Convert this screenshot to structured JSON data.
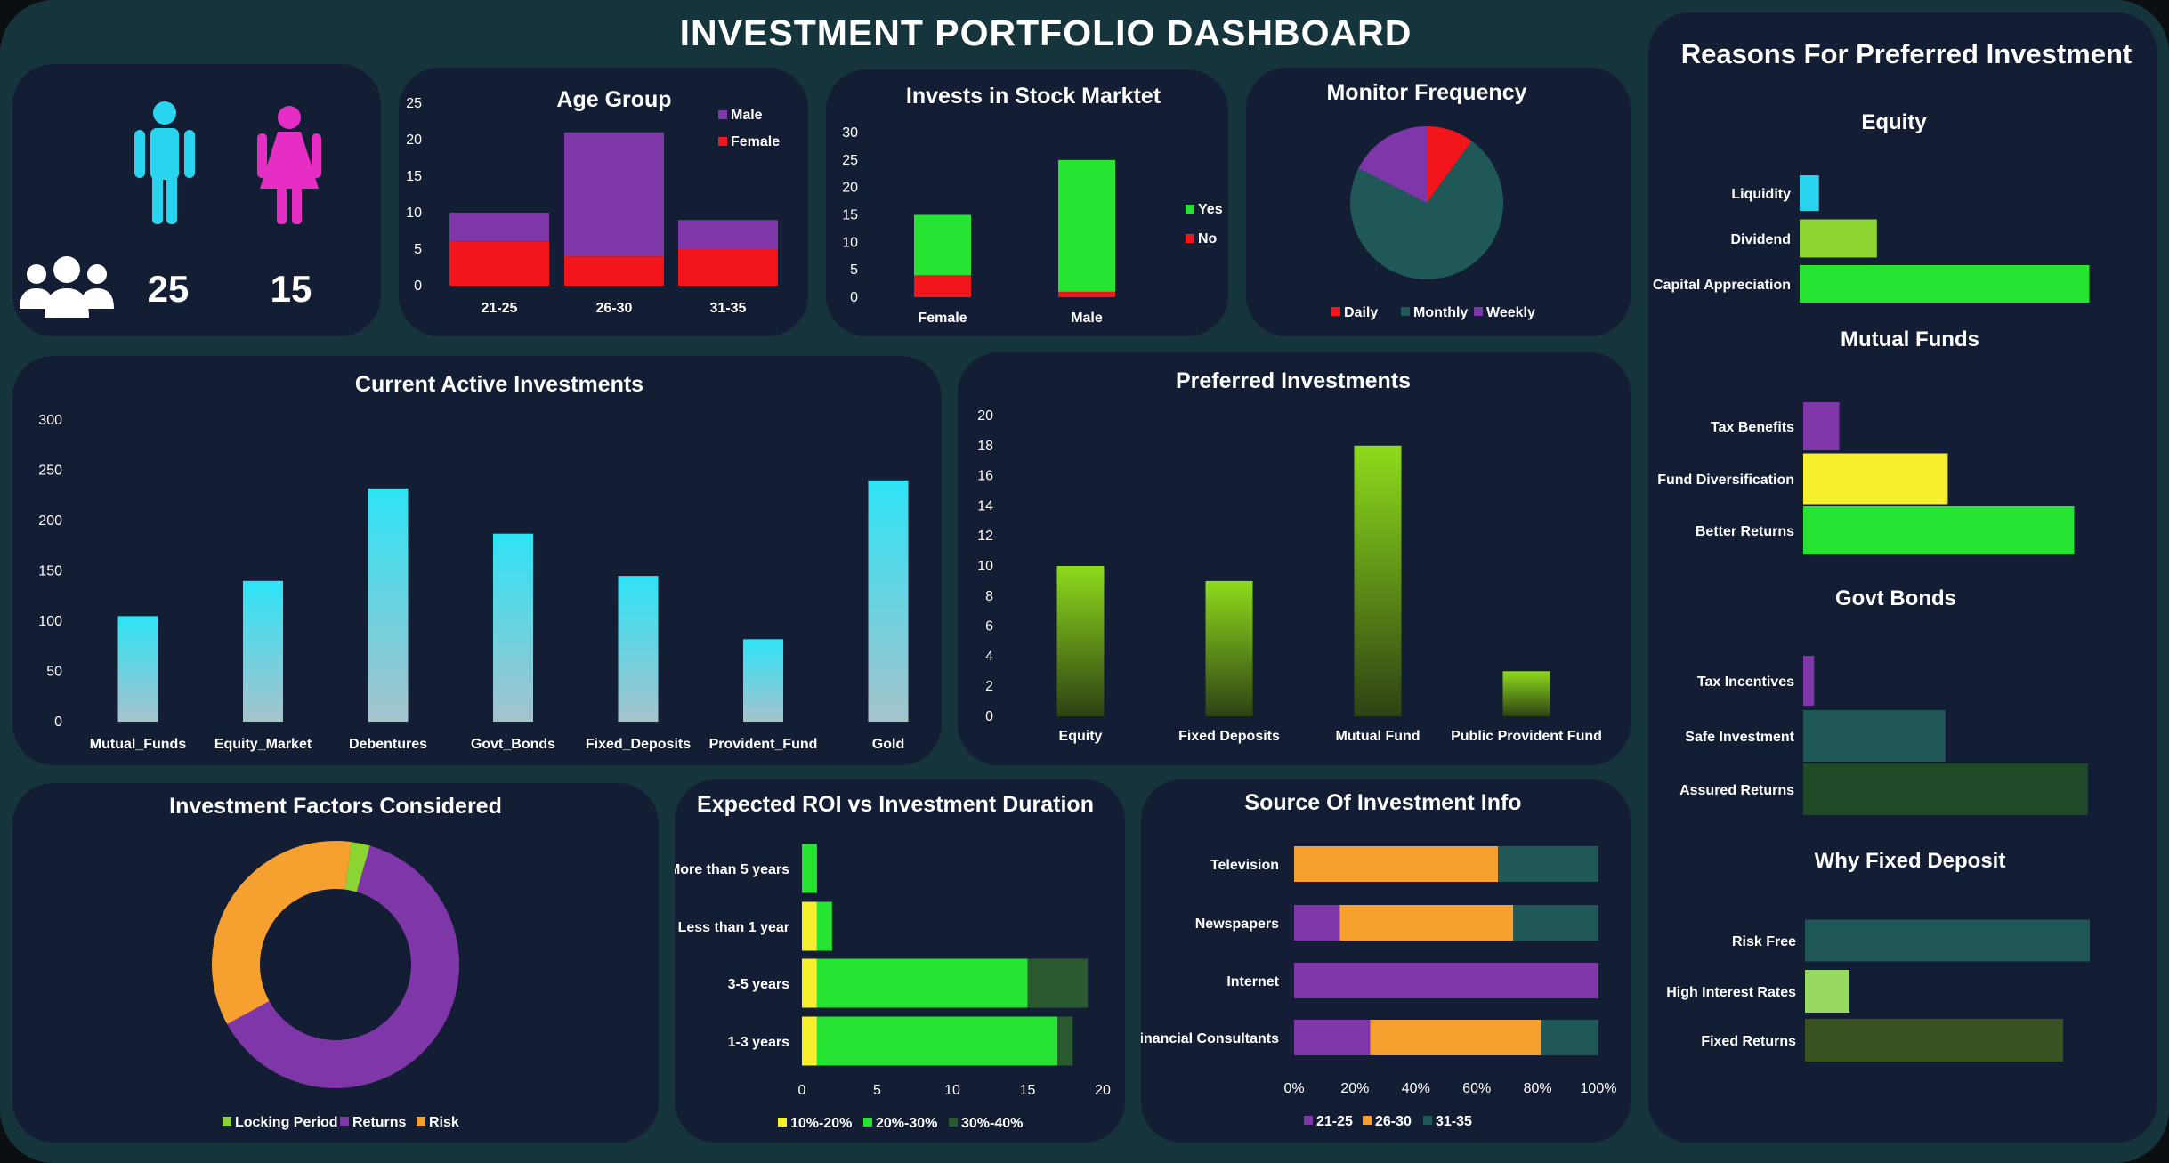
{
  "dashboard": {
    "title": "INVESTMENT PORTFOLIO DASHBOARD"
  },
  "colors": {
    "cyan": "#29d5ee",
    "magenta": "#e62ec4",
    "purple": "#7f36a8",
    "red": "#f2161c",
    "green": "#27e332",
    "orange": "#f6a030",
    "teal": "#1f5857",
    "darkgreen": "#2b5a30",
    "yellow": "#f8ef2e",
    "lime": "#8cd432",
    "olive": "#3e5a1e",
    "lightgreen": "#97d860",
    "panel": "#131d33",
    "frame": "#16343b"
  },
  "gender": {
    "male_count": "25",
    "female_count": "15",
    "icons": [
      "male-person-icon",
      "female-person-icon",
      "people-group-icon"
    ]
  },
  "chart_data": [
    {
      "id": "age_group",
      "type": "bar",
      "stacked": true,
      "title": "Age Group",
      "categories": [
        "21-25",
        "26-30",
        "31-35"
      ],
      "series": [
        {
          "name": "Male",
          "values": [
            4,
            17,
            4
          ]
        },
        {
          "name": "Female",
          "values": [
            6,
            4,
            5
          ]
        }
      ],
      "yticks": [
        "0",
        "5",
        "10",
        "15",
        "20",
        "25"
      ],
      "ylim": [
        0,
        25
      ],
      "legend": "top-right"
    },
    {
      "id": "stock_market",
      "type": "bar",
      "stacked": true,
      "title": "Invests in Stock Marktet",
      "categories": [
        "Female",
        "Male"
      ],
      "series": [
        {
          "name": "Yes",
          "values": [
            11,
            24
          ]
        },
        {
          "name": "No",
          "values": [
            4,
            1
          ]
        }
      ],
      "yticks": [
        "0",
        "5",
        "10",
        "15",
        "20",
        "25",
        "30"
      ],
      "ylim": [
        0,
        30
      ],
      "legend": "right"
    },
    {
      "id": "monitor_frequency",
      "type": "pie",
      "title": "Monitor Frequency",
      "labels": [
        "Daily",
        "Monthly",
        "Weekly"
      ],
      "values": [
        4,
        29,
        7
      ],
      "legend": "bottom"
    },
    {
      "id": "current_active",
      "type": "bar",
      "title": "Current Active Investments",
      "categories": [
        "Mutual_Funds",
        "Equity_Market",
        "Debentures",
        "Govt_Bonds",
        "Fixed_Deposits",
        "Provident_Fund",
        "Gold"
      ],
      "values": [
        105,
        140,
        232,
        187,
        145,
        82,
        240
      ],
      "yticks": [
        "0",
        "50",
        "100",
        "150",
        "200",
        "250",
        "300"
      ],
      "ylim": [
        0,
        300
      ]
    },
    {
      "id": "preferred",
      "type": "bar",
      "title": "Preferred Investments",
      "categories": [
        "Equity",
        "Fixed Deposits",
        "Mutual Fund",
        "Public Provident Fund"
      ],
      "values": [
        10,
        9,
        18,
        3
      ],
      "yticks": [
        "0",
        "2",
        "4",
        "6",
        "8",
        "10",
        "12",
        "14",
        "16",
        "18",
        "20"
      ],
      "ylim": [
        0,
        20
      ]
    },
    {
      "id": "factors",
      "type": "pie",
      "donut": true,
      "title": "Investment Factors Considered",
      "labels": [
        "Locking Period",
        "Returns",
        "Risk"
      ],
      "values": [
        1,
        25,
        14
      ],
      "legend": "bottom"
    },
    {
      "id": "roi_duration",
      "type": "bar",
      "orientation": "horizontal",
      "stacked": true,
      "title": "Expected ROI vs Investment Duration",
      "categories": [
        "More than 5 years",
        "Less than 1 year",
        "3-5 years",
        "1-3 years"
      ],
      "series": [
        {
          "name": "10%-20%",
          "values": [
            0,
            1,
            1,
            1
          ]
        },
        {
          "name": "20%-30%",
          "values": [
            1,
            1,
            14,
            16
          ]
        },
        {
          "name": "30%-40%",
          "values": [
            0,
            0,
            4,
            1
          ]
        }
      ],
      "xticks": [
        "0",
        "5",
        "10",
        "15",
        "20"
      ],
      "xlim": [
        0,
        20
      ],
      "legend": "bottom"
    },
    {
      "id": "info_source",
      "type": "bar",
      "orientation": "horizontal",
      "stacked": true,
      "percent": true,
      "title": "Source Of Investment Info",
      "categories": [
        "Television",
        "Newspapers",
        "Internet",
        "Financial Consultants"
      ],
      "series": [
        {
          "name": "21-25",
          "values": [
            0,
            15,
            100,
            25
          ]
        },
        {
          "name": "26-30",
          "values": [
            67,
            57,
            0,
            56
          ]
        },
        {
          "name": "31-35",
          "values": [
            33,
            28,
            0,
            19
          ]
        }
      ],
      "xticks": [
        "0%",
        "20%",
        "40%",
        "60%",
        "80%",
        "100%"
      ],
      "legend": "bottom"
    }
  ],
  "reasons": {
    "title": "Reasons For Preferred Investment",
    "groups": [
      {
        "title": "Equity",
        "items": [
          {
            "label": "Liquidity",
            "value": 1,
            "color": "#29d5ee"
          },
          {
            "label": "Dividend",
            "value": 4,
            "color": "#8cd432"
          },
          {
            "label": "Capital Appreciation",
            "value": 15,
            "color": "#27e332"
          }
        ]
      },
      {
        "title": "Mutual Funds",
        "items": [
          {
            "label": "Tax Benefits",
            "value": 2,
            "color": "#7f36a8"
          },
          {
            "label": "Fund Diversification",
            "value": 8,
            "color": "#f8ef2e"
          },
          {
            "label": "Better Returns",
            "value": 15,
            "color": "#27e332"
          }
        ]
      },
      {
        "title": "Govt Bonds",
        "items": [
          {
            "label": "Tax Incentives",
            "value": 1,
            "color": "#7f36a8"
          },
          {
            "label": "Safe Investment",
            "value": 13,
            "color": "#1f5857"
          },
          {
            "label": "Assured Returns",
            "value": 26,
            "color": "#1f4a28"
          }
        ]
      },
      {
        "title": "Why Fixed Deposit",
        "items": [
          {
            "label": "Risk Free",
            "value": 32,
            "color": "#1f5857"
          },
          {
            "label": "High Interest Rates",
            "value": 5,
            "color": "#97d860"
          },
          {
            "label": "Fixed Returns",
            "value": 29,
            "color": "#3a521f"
          }
        ]
      }
    ]
  }
}
